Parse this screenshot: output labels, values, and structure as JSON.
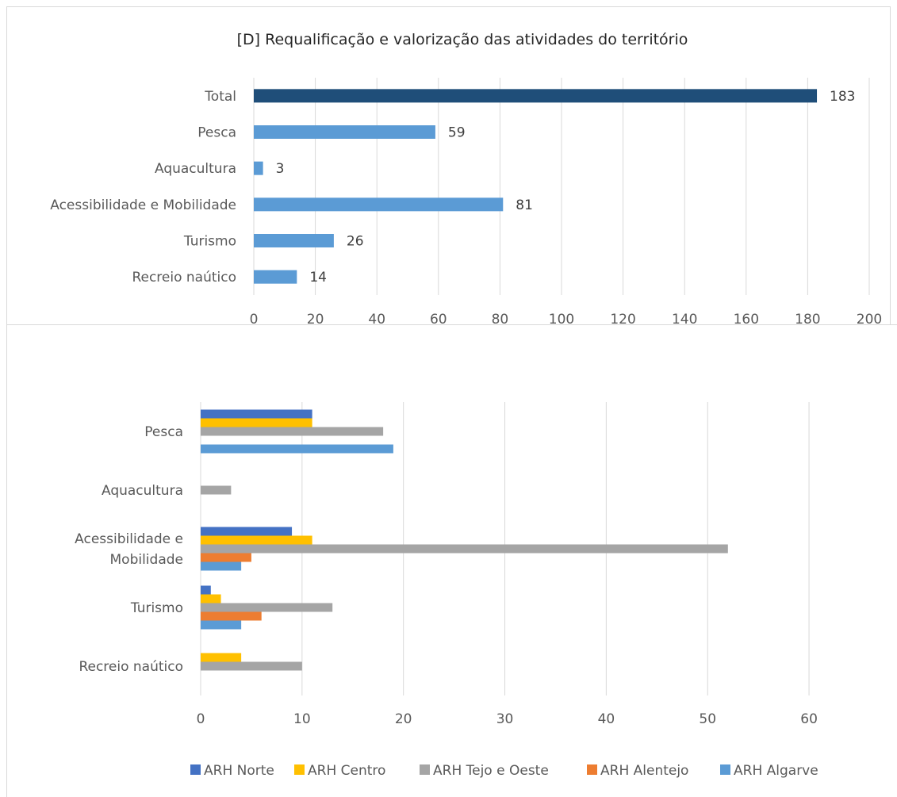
{
  "chart_data": [
    {
      "type": "bar",
      "orientation": "horizontal",
      "title": "[D] Requalificação e valorização das atividades do território",
      "categories": [
        "Total",
        "Pesca",
        "Aquacultura",
        "Acessibilidade e Mobilidade",
        "Turismo",
        "Recreio naútico"
      ],
      "values": [
        183,
        59,
        3,
        81,
        26,
        14
      ],
      "highlight_category": "Total",
      "colors": {
        "total": "#1f4e79",
        "bar": "#5b9bd5"
      },
      "xlim": [
        0,
        200
      ],
      "xticks": [
        0,
        20,
        40,
        60,
        80,
        100,
        120,
        140,
        160,
        180,
        200
      ],
      "grid": true,
      "data_labels": true
    },
    {
      "type": "bar",
      "orientation": "horizontal",
      "title": "",
      "categories": [
        "Pesca",
        "Aquacultura",
        "Acessibilidade e Mobilidade",
        "Turismo",
        "Recreio naútico"
      ],
      "category_label_lines": [
        [
          "Pesca"
        ],
        [
          "Aquacultura"
        ],
        [
          "Acessibilidade e",
          "Mobilidade"
        ],
        [
          "Turismo"
        ],
        [
          "Recreio naútico"
        ]
      ],
      "series": [
        {
          "name": "ARH Norte",
          "color": "#4472c4",
          "values": [
            11,
            0,
            9,
            1,
            0
          ]
        },
        {
          "name": "ARH Centro",
          "color": "#ffc000",
          "values": [
            11,
            0,
            11,
            2,
            4
          ]
        },
        {
          "name": "ARH Tejo e Oeste",
          "color": "#a5a5a5",
          "values": [
            18,
            3,
            52,
            13,
            10
          ]
        },
        {
          "name": "ARH Alentejo",
          "color": "#ed7d31",
          "values": [
            0,
            0,
            5,
            6,
            0
          ]
        },
        {
          "name": "ARH Algarve",
          "color": "#5b9bd5",
          "values": [
            19,
            0,
            4,
            4,
            0
          ]
        }
      ],
      "xlim": [
        0,
        65
      ],
      "xticks": [
        0,
        10,
        20,
        30,
        40,
        50,
        60
      ],
      "grid": true,
      "legend": "bottom"
    }
  ]
}
